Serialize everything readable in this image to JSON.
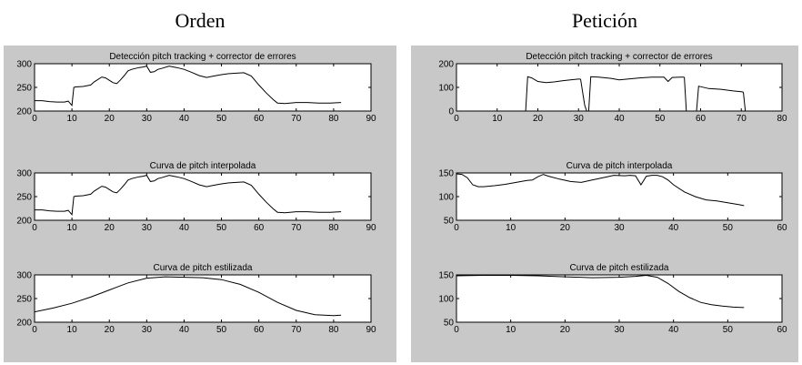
{
  "titles": {
    "left": "Orden",
    "right": "Petición"
  },
  "chart_data": [
    {
      "type": "line",
      "panel": "left",
      "title": "Detección pitch tracking + corrector de errores",
      "xlim": [
        0,
        90
      ],
      "ylim": [
        200,
        300
      ],
      "xticks": [
        0,
        10,
        20,
        30,
        40,
        50,
        60,
        70,
        80,
        90
      ],
      "yticks": [
        200,
        250,
        300
      ],
      "series": [
        {
          "color": "#000000",
          "segments": [
            {
              "x": [
                0,
                2,
                4,
                6,
                8,
                9,
                10,
                10.5,
                11,
                13,
                15,
                16,
                18,
                19,
                20,
                21,
                22,
                23,
                24,
                25,
                26,
                27,
                28,
                29,
                30,
                31,
                32,
                33,
                34,
                36,
                38,
                40,
                42,
                44,
                46,
                48,
                50,
                52,
                54,
                56,
                58,
                60,
                62,
                64,
                65,
                67,
                70,
                73,
                76,
                79,
                82
              ],
              "y": [
                222,
                222,
                220,
                219,
                219,
                221,
                212,
                250,
                251,
                252,
                255,
                262,
                272,
                270,
                265,
                260,
                258,
                266,
                275,
                285,
                288,
                290,
                292,
                293,
                295,
                282,
                283,
                288,
                290,
                295,
                292,
                288,
                282,
                275,
                271,
                274,
                277,
                279,
                280,
                281,
                274,
                255,
                238,
                223,
                217,
                216,
                218,
                218,
                217,
                217,
                218
              ]
            }
          ]
        }
      ]
    },
    {
      "type": "line",
      "panel": "left",
      "title": "Curva de pitch interpolada",
      "xlim": [
        0,
        90
      ],
      "ylim": [
        200,
        300
      ],
      "xticks": [
        0,
        10,
        20,
        30,
        40,
        50,
        60,
        70,
        80,
        90
      ],
      "yticks": [
        200,
        250,
        300
      ],
      "series": [
        {
          "color": "#000000",
          "segments": [
            {
              "x": [
                0,
                2,
                4,
                6,
                8,
                9,
                10,
                10.5,
                11,
                13,
                15,
                16,
                18,
                19,
                20,
                21,
                22,
                23,
                24,
                25,
                26,
                27,
                28,
                29,
                30,
                31,
                32,
                33,
                34,
                36,
                38,
                40,
                42,
                44,
                46,
                48,
                50,
                52,
                54,
                56,
                58,
                60,
                62,
                64,
                65,
                67,
                70,
                73,
                76,
                79,
                82
              ],
              "y": [
                222,
                222,
                220,
                219,
                219,
                221,
                212,
                250,
                251,
                252,
                255,
                262,
                272,
                270,
                265,
                260,
                258,
                266,
                275,
                285,
                288,
                290,
                292,
                293,
                295,
                282,
                283,
                288,
                290,
                295,
                292,
                288,
                282,
                275,
                271,
                274,
                277,
                279,
                280,
                281,
                274,
                255,
                238,
                223,
                217,
                216,
                218,
                218,
                217,
                217,
                218
              ]
            }
          ]
        }
      ]
    },
    {
      "type": "line",
      "panel": "left",
      "title": "Curva de pitch estilizada",
      "xlim": [
        0,
        90
      ],
      "ylim": [
        200,
        300
      ],
      "xticks": [
        0,
        10,
        20,
        30,
        40,
        50,
        60,
        70,
        80,
        90
      ],
      "yticks": [
        200,
        250,
        300
      ],
      "series": [
        {
          "color": "#000000",
          "segments": [
            {
              "x": [
                0,
                5,
                10,
                15,
                20,
                25,
                30,
                35,
                40,
                45,
                50,
                55,
                60,
                65,
                70,
                75,
                80,
                82
              ],
              "y": [
                222,
                230,
                240,
                253,
                268,
                283,
                293,
                296,
                295,
                294,
                290,
                280,
                263,
                242,
                225,
                216,
                214,
                215
              ]
            }
          ]
        }
      ]
    },
    {
      "type": "line",
      "panel": "right",
      "title": "Detección pitch tracking + corrector de errores",
      "xlim": [
        0,
        80
      ],
      "ylim": [
        0,
        200
      ],
      "xticks": [
        0,
        10,
        20,
        30,
        40,
        50,
        60,
        70,
        80
      ],
      "yticks": [
        0,
        100,
        200
      ],
      "series": [
        {
          "color": "#000000",
          "segments": [
            {
              "x": [
                0,
                17
              ],
              "y": [
                0,
                0
              ]
            },
            {
              "x": [
                17,
                17.5,
                18.5,
                20,
                22,
                24,
                26,
                28,
                30,
                30.5
              ],
              "y": [
                0,
                145,
                140,
                125,
                120,
                123,
                128,
                132,
                135,
                135
              ]
            },
            {
              "x": [
                30.5,
                31.5,
                32,
                32.5
              ],
              "y": [
                135,
                25,
                0,
                0
              ]
            },
            {
              "x": [
                32.5,
                33,
                35,
                38,
                40,
                42,
                45,
                48,
                50,
                51,
                52,
                53,
                55,
                56
              ],
              "y": [
                0,
                145,
                143,
                138,
                132,
                135,
                140,
                143,
                143,
                143,
                125,
                142,
                143,
                143
              ]
            },
            {
              "x": [
                56,
                56.5,
                58.5,
                59
              ],
              "y": [
                143,
                0,
                0,
                0
              ]
            },
            {
              "x": [
                59,
                59.5,
                62,
                65,
                68,
                70,
                70.5
              ],
              "y": [
                0,
                105,
                95,
                92,
                85,
                82,
                80
              ]
            },
            {
              "x": [
                70.5,
                71,
                80
              ],
              "y": [
                80,
                0,
                0
              ]
            }
          ]
        }
      ]
    },
    {
      "type": "line",
      "panel": "right",
      "title": "Curva de pitch interpolada",
      "xlim": [
        0,
        60
      ],
      "ylim": [
        50,
        150
      ],
      "xticks": [
        0,
        10,
        20,
        30,
        40,
        50,
        60
      ],
      "yticks": [
        50,
        100,
        150
      ],
      "series": [
        {
          "color": "#000000",
          "segments": [
            {
              "x": [
                0,
                1,
                2,
                3,
                4,
                5,
                7,
                9,
                11,
                13,
                14,
                15,
                16,
                17,
                19,
                21,
                23,
                25,
                27,
                29,
                31,
                32,
                33,
                34,
                35,
                36,
                37,
                38,
                39,
                40,
                42,
                44,
                46,
                48,
                50,
                52,
                53
              ],
              "y": [
                148,
                147,
                140,
                125,
                121,
                121,
                123,
                126,
                130,
                134,
                135,
                142,
                147,
                143,
                137,
                132,
                130,
                135,
                140,
                145,
                144,
                145,
                144,
                125,
                143,
                145,
                145,
                142,
                135,
                125,
                110,
                100,
                93,
                91,
                87,
                83,
                81
              ]
            }
          ]
        }
      ]
    },
    {
      "type": "line",
      "panel": "right",
      "title": "Curva de pitch estilizada",
      "xlim": [
        0,
        60
      ],
      "ylim": [
        50,
        150
      ],
      "xticks": [
        0,
        10,
        20,
        30,
        40,
        50,
        60
      ],
      "yticks": [
        50,
        100,
        150
      ],
      "series": [
        {
          "color": "#000000",
          "segments": [
            {
              "x": [
                0,
                5,
                10,
                15,
                20,
                25,
                30,
                33,
                35,
                37,
                39,
                41,
                43,
                45,
                47,
                49,
                51,
                53
              ],
              "y": [
                148,
                149,
                149,
                148,
                146,
                144,
                145,
                147,
                149,
                145,
                132,
                115,
                102,
                92,
                87,
                84,
                82,
                81
              ]
            }
          ]
        }
      ]
    }
  ]
}
